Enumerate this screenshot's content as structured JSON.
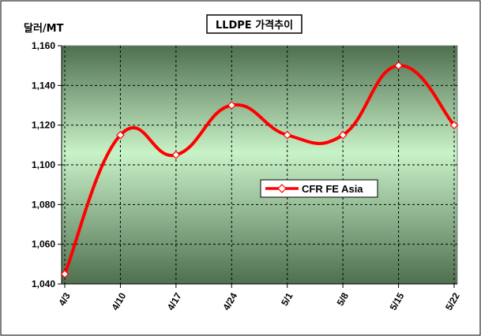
{
  "chart_data": {
    "type": "line",
    "title": "LLDPE 가격추이",
    "ylabel": "달러/MT",
    "xlabel": "",
    "categories": [
      "4/3",
      "4/10",
      "4/17",
      "4/24",
      "5/1",
      "5/8",
      "5/15",
      "5/22"
    ],
    "ylim": [
      1040,
      1160
    ],
    "yticks": [
      1040,
      1060,
      1080,
      1100,
      1120,
      1140,
      1160
    ],
    "ytick_labels": [
      "1,040",
      "1,060",
      "1,080",
      "1,100",
      "1,120",
      "1,140",
      "1,160"
    ],
    "grid": true,
    "legend_position": "right-center",
    "series": [
      {
        "name": "CFR FE Asia",
        "color": "#ff0000",
        "marker": "diamond",
        "values": [
          1045,
          1115,
          1105,
          1130,
          1115,
          1115,
          1150,
          1120
        ]
      }
    ]
  }
}
